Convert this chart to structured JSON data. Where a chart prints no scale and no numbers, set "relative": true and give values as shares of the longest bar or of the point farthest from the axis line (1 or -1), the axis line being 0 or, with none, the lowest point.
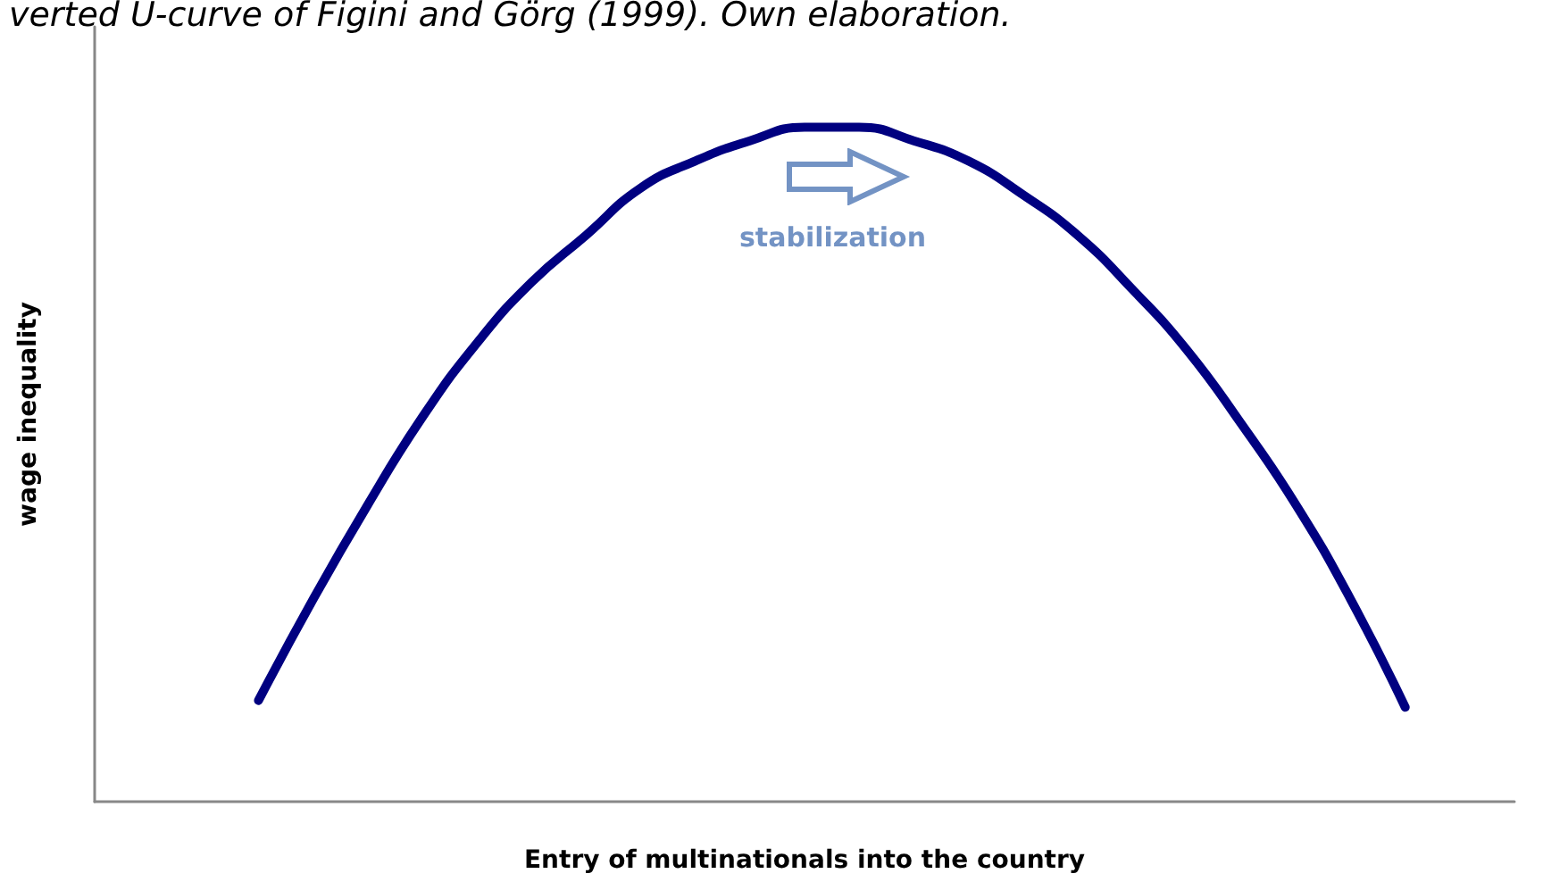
{
  "chart_data": {
    "type": "line",
    "title": "verted U-curve of Figini and Görg (1999). Own elaboration.",
    "xlabel": "Entry of multinationals into the country",
    "ylabel": "wage inequality",
    "relative": true,
    "categories": [
      null,
      null,
      null,
      null,
      null,
      null,
      null,
      null,
      null,
      null,
      null,
      null,
      null,
      null,
      null,
      null,
      null,
      null,
      null,
      null,
      null,
      null,
      null,
      null,
      null,
      null,
      null
    ],
    "series": [
      {
        "color": "#000080",
        "values": [
          null,
          null,
          null,
          0.15,
          0.3,
          0.44,
          0.57,
          0.68,
          0.77,
          0.84,
          0.91,
          0.95,
          0.98,
          1.0,
          1.0,
          0.98,
          0.95,
          0.9,
          0.84,
          0.76,
          0.67,
          0.56,
          0.44,
          0.3,
          0.14,
          null,
          null
        ]
      }
    ],
    "annotations": [
      "stabilization"
    ],
    "marker": "none",
    "line_style": "solid"
  }
}
